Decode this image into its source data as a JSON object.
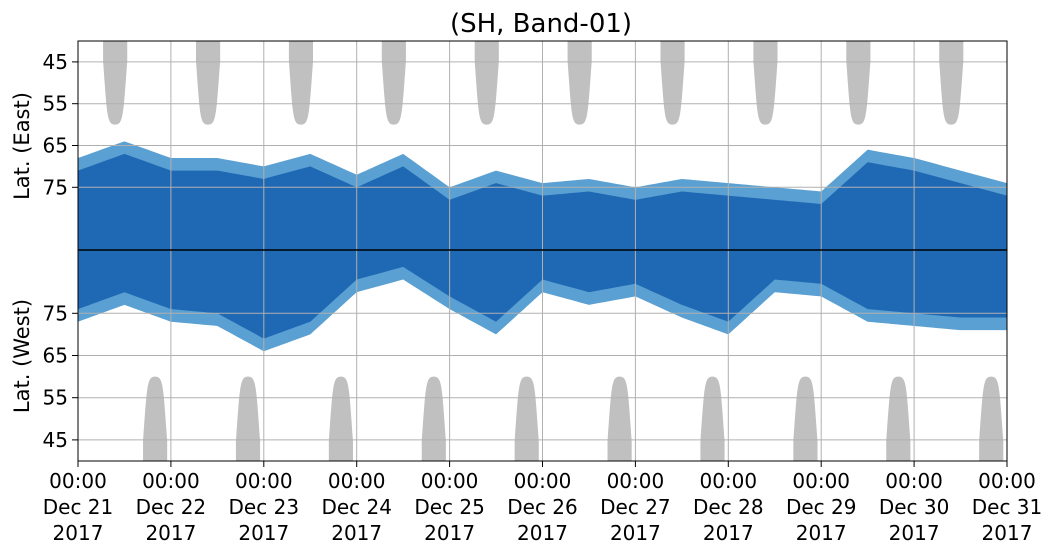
{
  "chart_data": {
    "type": "heatmap",
    "title": "(SH, Band-01)",
    "ylabel_top": "Lat. (East)",
    "ylabel_bottom": "Lat. (West)",
    "x_range": [
      "2017-12-21 00:00",
      "2017-12-31 00:00"
    ],
    "x_ticks": [
      {
        "time": "00:00",
        "date": "Dec 21",
        "year": "2017"
      },
      {
        "time": "00:00",
        "date": "Dec 22",
        "year": "2017"
      },
      {
        "time": "00:00",
        "date": "Dec 23",
        "year": "2017"
      },
      {
        "time": "00:00",
        "date": "Dec 24",
        "year": "2017"
      },
      {
        "time": "00:00",
        "date": "Dec 25",
        "year": "2017"
      },
      {
        "time": "00:00",
        "date": "Dec 26",
        "year": "2017"
      },
      {
        "time": "00:00",
        "date": "Dec 27",
        "year": "2017"
      },
      {
        "time": "00:00",
        "date": "Dec 28",
        "year": "2017"
      },
      {
        "time": "00:00",
        "date": "Dec 29",
        "year": "2017"
      },
      {
        "time": "00:00",
        "date": "Dec 30",
        "year": "2017"
      },
      {
        "time": "00:00",
        "date": "Dec 31",
        "year": "2017"
      }
    ],
    "y_ticks_top": [
      "45",
      "55",
      "65",
      "75"
    ],
    "y_ticks_bottom": [
      "75",
      "65",
      "55",
      "45"
    ],
    "y_range": [
      40,
      90
    ],
    "grid": true,
    "colors": {
      "background": "#ffffff",
      "dense": "#1f68b4",
      "sparse": "#5aa0d2",
      "daylight": "#c0c0c0",
      "grid": "#b0b0b0",
      "separator": "#000000"
    },
    "daylight_east": [
      {
        "day": 0.4,
        "bottom_lat": 60
      },
      {
        "day": 1.4,
        "bottom_lat": 60
      },
      {
        "day": 2.4,
        "bottom_lat": 60
      },
      {
        "day": 3.4,
        "bottom_lat": 60
      },
      {
        "day": 4.4,
        "bottom_lat": 60
      },
      {
        "day": 5.4,
        "bottom_lat": 60
      },
      {
        "day": 6.4,
        "bottom_lat": 60
      },
      {
        "day": 7.4,
        "bottom_lat": 60
      },
      {
        "day": 8.4,
        "bottom_lat": 60
      },
      {
        "day": 9.4,
        "bottom_lat": 60
      }
    ],
    "daylight_west": [
      {
        "day": 0.83,
        "top_lat": 60
      },
      {
        "day": 1.83,
        "top_lat": 60
      },
      {
        "day": 2.83,
        "top_lat": 60
      },
      {
        "day": 3.83,
        "top_lat": 60
      },
      {
        "day": 4.83,
        "top_lat": 60
      },
      {
        "day": 5.83,
        "top_lat": 60
      },
      {
        "day": 6.83,
        "top_lat": 60
      },
      {
        "day": 7.83,
        "top_lat": 60
      },
      {
        "day": 8.83,
        "top_lat": 60
      },
      {
        "day": 9.83,
        "top_lat": 60
      }
    ],
    "occurrence_east_bounds": [
      {
        "day": 0.0,
        "top_lat": 68,
        "bottom_lat": 90
      },
      {
        "day": 0.5,
        "top_lat": 64,
        "bottom_lat": 90
      },
      {
        "day": 1.0,
        "top_lat": 68,
        "bottom_lat": 90
      },
      {
        "day": 1.5,
        "top_lat": 68,
        "bottom_lat": 90
      },
      {
        "day": 2.0,
        "top_lat": 70,
        "bottom_lat": 90
      },
      {
        "day": 2.5,
        "top_lat": 67,
        "bottom_lat": 90
      },
      {
        "day": 3.0,
        "top_lat": 72,
        "bottom_lat": 90
      },
      {
        "day": 3.5,
        "top_lat": 67,
        "bottom_lat": 90
      },
      {
        "day": 4.0,
        "top_lat": 75,
        "bottom_lat": 90
      },
      {
        "day": 4.5,
        "top_lat": 71,
        "bottom_lat": 90
      },
      {
        "day": 5.0,
        "top_lat": 74,
        "bottom_lat": 90
      },
      {
        "day": 5.5,
        "top_lat": 73,
        "bottom_lat": 90
      },
      {
        "day": 6.0,
        "top_lat": 75,
        "bottom_lat": 90
      },
      {
        "day": 6.5,
        "top_lat": 73,
        "bottom_lat": 90
      },
      {
        "day": 7.0,
        "top_lat": 74,
        "bottom_lat": 90
      },
      {
        "day": 7.5,
        "top_lat": 75,
        "bottom_lat": 90
      },
      {
        "day": 8.0,
        "top_lat": 76,
        "bottom_lat": 90
      },
      {
        "day": 8.5,
        "top_lat": 66,
        "bottom_lat": 90
      },
      {
        "day": 9.0,
        "top_lat": 68,
        "bottom_lat": 90
      },
      {
        "day": 9.5,
        "top_lat": 71,
        "bottom_lat": 90
      },
      {
        "day": 10.0,
        "top_lat": 74,
        "bottom_lat": 90
      }
    ],
    "occurrence_west_bounds": [
      {
        "day": 0.0,
        "top_lat": 90,
        "bottom_lat": 73
      },
      {
        "day": 0.5,
        "top_lat": 90,
        "bottom_lat": 77
      },
      {
        "day": 1.0,
        "top_lat": 90,
        "bottom_lat": 73
      },
      {
        "day": 1.5,
        "top_lat": 90,
        "bottom_lat": 72
      },
      {
        "day": 2.0,
        "top_lat": 90,
        "bottom_lat": 66
      },
      {
        "day": 2.5,
        "top_lat": 90,
        "bottom_lat": 70
      },
      {
        "day": 3.0,
        "top_lat": 90,
        "bottom_lat": 80
      },
      {
        "day": 3.5,
        "top_lat": 90,
        "bottom_lat": 83
      },
      {
        "day": 4.0,
        "top_lat": 90,
        "bottom_lat": 76
      },
      {
        "day": 4.5,
        "top_lat": 90,
        "bottom_lat": 70
      },
      {
        "day": 5.0,
        "top_lat": 90,
        "bottom_lat": 80
      },
      {
        "day": 5.5,
        "top_lat": 90,
        "bottom_lat": 77
      },
      {
        "day": 6.0,
        "top_lat": 90,
        "bottom_lat": 79
      },
      {
        "day": 6.5,
        "top_lat": 90,
        "bottom_lat": 74
      },
      {
        "day": 7.0,
        "top_lat": 90,
        "bottom_lat": 70
      },
      {
        "day": 7.5,
        "top_lat": 90,
        "bottom_lat": 80
      },
      {
        "day": 8.0,
        "top_lat": 90,
        "bottom_lat": 79
      },
      {
        "day": 8.5,
        "top_lat": 90,
        "bottom_lat": 73
      },
      {
        "day": 9.0,
        "top_lat": 90,
        "bottom_lat": 72
      },
      {
        "day": 9.5,
        "top_lat": 90,
        "bottom_lat": 71
      },
      {
        "day": 10.0,
        "top_lat": 90,
        "bottom_lat": 71
      }
    ]
  }
}
